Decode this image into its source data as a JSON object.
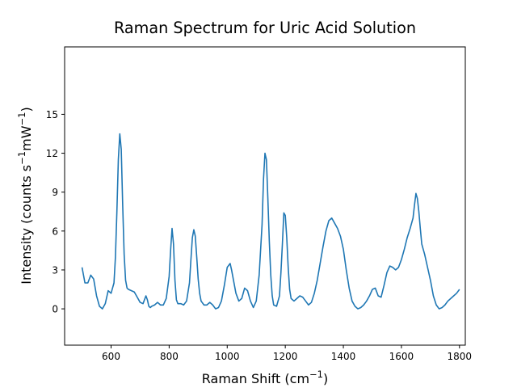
{
  "chart_data": {
    "type": "line",
    "title": "Raman Spectrum for Uric Acid Solution",
    "xlabel_main": "Raman Shift (cm",
    "xlabel_exp": "−1",
    "xlabel_tail": ")",
    "ylabel_main": "Intensity (counts s",
    "ylabel_exp1": "−1",
    "ylabel_mid": "mW",
    "ylabel_exp2": "−1",
    "ylabel_tail": ")",
    "xlim": [
      440,
      1820
    ],
    "ylim": [
      -2.8,
      20.2
    ],
    "xticks": [
      600,
      800,
      1000,
      1200,
      1400,
      1600,
      1800
    ],
    "yticks": [
      0,
      3,
      6,
      9,
      12,
      15
    ],
    "grid": false,
    "legend": "none",
    "series": [
      {
        "color": "#1f77b4",
        "x": [
          500,
          510,
          520,
          530,
          540,
          550,
          560,
          570,
          580,
          590,
          600,
          610,
          615,
          620,
          625,
          630,
          635,
          640,
          645,
          650,
          655,
          660,
          670,
          680,
          690,
          700,
          710,
          720,
          725,
          730,
          735,
          740,
          750,
          760,
          770,
          780,
          790,
          800,
          805,
          810,
          815,
          820,
          825,
          830,
          840,
          850,
          860,
          870,
          875,
          880,
          885,
          890,
          895,
          900,
          905,
          910,
          920,
          930,
          940,
          950,
          960,
          970,
          980,
          990,
          1000,
          1010,
          1015,
          1020,
          1025,
          1030,
          1040,
          1050,
          1060,
          1070,
          1080,
          1090,
          1100,
          1110,
          1120,
          1125,
          1130,
          1135,
          1140,
          1145,
          1150,
          1155,
          1160,
          1170,
          1180,
          1185,
          1190,
          1195,
          1200,
          1205,
          1210,
          1215,
          1220,
          1230,
          1240,
          1250,
          1260,
          1270,
          1280,
          1290,
          1300,
          1310,
          1320,
          1330,
          1340,
          1350,
          1360,
          1370,
          1380,
          1390,
          1400,
          1410,
          1420,
          1430,
          1440,
          1450,
          1460,
          1470,
          1480,
          1490,
          1500,
          1510,
          1520,
          1530,
          1540,
          1550,
          1560,
          1570,
          1580,
          1590,
          1600,
          1610,
          1620,
          1630,
          1640,
          1645,
          1650,
          1655,
          1660,
          1665,
          1670,
          1680,
          1690,
          1700,
          1710,
          1720,
          1730,
          1740,
          1750,
          1760,
          1770,
          1780,
          1790,
          1800
        ],
        "y": [
          3.2,
          2.0,
          2.0,
          2.6,
          2.3,
          1.0,
          0.2,
          0.0,
          0.4,
          1.4,
          1.2,
          2.0,
          4.0,
          7.5,
          11.5,
          13.5,
          12.3,
          8.0,
          4.2,
          2.2,
          1.6,
          1.5,
          1.4,
          1.3,
          0.9,
          0.5,
          0.4,
          1.0,
          0.7,
          0.2,
          0.1,
          0.2,
          0.3,
          0.5,
          0.3,
          0.3,
          0.8,
          2.5,
          4.5,
          6.2,
          5.0,
          2.2,
          0.7,
          0.4,
          0.4,
          0.3,
          0.6,
          2.0,
          3.8,
          5.5,
          6.1,
          5.6,
          4.0,
          2.3,
          1.2,
          0.6,
          0.3,
          0.3,
          0.5,
          0.3,
          0.0,
          0.1,
          0.6,
          1.8,
          3.2,
          3.5,
          3.0,
          2.4,
          1.8,
          1.2,
          0.6,
          0.8,
          1.6,
          1.4,
          0.6,
          0.1,
          0.6,
          2.6,
          6.5,
          10.0,
          12.0,
          11.5,
          8.5,
          5.2,
          2.6,
          1.0,
          0.3,
          0.2,
          1.0,
          2.8,
          5.0,
          7.4,
          7.2,
          5.5,
          3.2,
          1.5,
          0.8,
          0.6,
          0.8,
          1.0,
          0.9,
          0.6,
          0.3,
          0.5,
          1.2,
          2.2,
          3.5,
          4.8,
          6.0,
          6.8,
          7.0,
          6.6,
          6.2,
          5.6,
          4.6,
          3.0,
          1.6,
          0.6,
          0.2,
          0.0,
          0.1,
          0.3,
          0.6,
          1.0,
          1.5,
          1.6,
          1.0,
          0.9,
          1.8,
          2.8,
          3.3,
          3.2,
          3.0,
          3.2,
          3.8,
          4.6,
          5.5,
          6.2,
          7.0,
          8.0,
          8.9,
          8.5,
          7.5,
          6.2,
          5.0,
          4.2,
          3.2,
          2.2,
          1.0,
          0.3,
          0.0,
          0.1,
          0.3,
          0.6,
          0.8,
          1.0,
          1.2,
          1.5
        ]
      }
    ]
  }
}
